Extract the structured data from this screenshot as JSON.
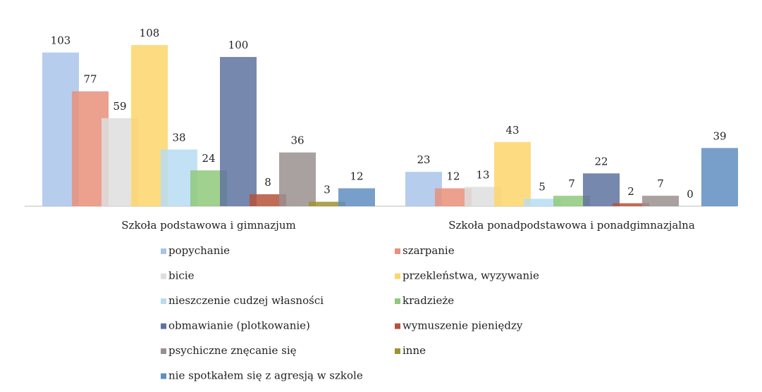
{
  "chart_data": {
    "type": "bar",
    "categories": [
      "Szkoła podstawowa i gimnazjum",
      "Szkoła ponadpodstawowa i ponadgimnazjalna"
    ],
    "series": [
      {
        "name": "popychanie",
        "color": "#a9c4ea",
        "values": [
          103,
          23
        ]
      },
      {
        "name": "szarpanie",
        "color": "#e8907a",
        "values": [
          77,
          12
        ]
      },
      {
        "name": "bicie",
        "color": "#dedede",
        "values": [
          59,
          13
        ]
      },
      {
        "name": "przekleństwa, wyzywanie",
        "color": "#fdd66b",
        "values": [
          108,
          43
        ]
      },
      {
        "name": "nieszczenie cudzej własności",
        "color": "#b7dcf3",
        "values": [
          38,
          5
        ]
      },
      {
        "name": "kradzieże",
        "color": "#8fc97a",
        "values": [
          24,
          7
        ]
      },
      {
        "name": "obmawianie (plotkowanie)",
        "color": "#5f73a0",
        "values": [
          100,
          22
        ]
      },
      {
        "name": "wymuszenie pieniędzy",
        "color": "#b5523a",
        "values": [
          8,
          2
        ]
      },
      {
        "name": "psychiczne znęcanie się",
        "color": "#9a8f8f",
        "values": [
          36,
          7
        ]
      },
      {
        "name": "inne",
        "color": "#a0922e",
        "values": [
          3,
          0
        ]
      },
      {
        "name": "nie spotkałem się z agresją w szkole",
        "color": "#5f8ec0",
        "values": [
          12,
          39
        ]
      }
    ],
    "legend": "bottom"
  }
}
